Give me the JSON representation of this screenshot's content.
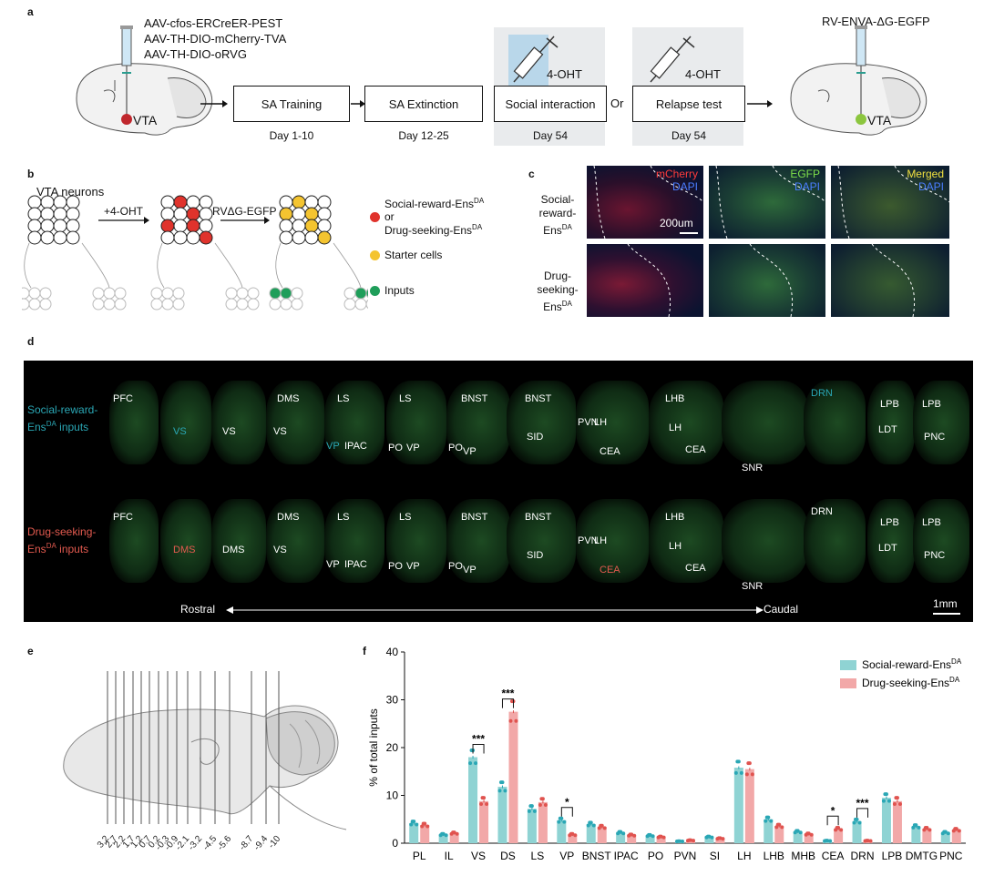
{
  "panel_a": {
    "label": "a",
    "vectors": [
      "AAV-cfos-ERCreER-PEST",
      "AAV-TH-DIO-mCherry-TVA",
      "AAV-TH-DIO-oRVG"
    ],
    "vta_left": "VTA",
    "vta_right": "VTA",
    "rv_vector": "RV-ENVA-ΔG-EGFP",
    "steps": [
      {
        "label": "SA Training",
        "day": "Day 1-10"
      },
      {
        "label": "SA Extinction",
        "day": "Day 12-25"
      },
      {
        "label": "Social interaction",
        "day": "Day 54"
      },
      {
        "label": "Relapse test",
        "day": "Day 54"
      }
    ],
    "oht_1": "4-OHT",
    "oht_2": "4-OHT",
    "or": "Or"
  },
  "panel_b": {
    "label": "b",
    "vta_neurons": "VTA neurons",
    "oht": "+4-OHT",
    "rv": "RVΔG-EGFP",
    "legend_red_1": "Social-reward-Ens",
    "legend_red_sup": "DA",
    "legend_or": "or",
    "legend_red_2": "Drug-seeking-Ens",
    "legend_red_2_sup": "DA",
    "legend_yellow": "Starter cells",
    "legend_green": "Inputs",
    "colors": {
      "red": "#e0332c",
      "yellow": "#f4c430",
      "green": "#1f9e5a"
    }
  },
  "panel_c": {
    "label": "c",
    "row1": "Social-",
    "row1b": "reward-Ens",
    "row1_sup": "DA",
    "row2": "Drug-",
    "row2b": "seeking-Ens",
    "row2_sup": "DA",
    "col1_a": "mCherry",
    "col1_b": "DAPI",
    "col2_a": "EGFP",
    "col2_b": "DAPI",
    "col3_a": "Merged",
    "col3_b": "DAPI",
    "scale": "200um"
  },
  "panel_d": {
    "label": "d",
    "row1_label": "Social-reward-",
    "row1_label_b": "Ens",
    "row1_sup": "DA",
    "row1_label_c": " inputs",
    "row2_label": "Drug-seeking-",
    "row2_label_b": "Ens",
    "row2_sup": "DA",
    "row2_label_c": " inputs",
    "rostral": "Rostral",
    "caudal": "Caudal",
    "scale": "1mm",
    "row1_regions": [
      "PFC",
      "VS",
      "VS",
      "DMS",
      "VS",
      "LS",
      "VP",
      "IPAC",
      "LS",
      "PO",
      "VP",
      "BNST",
      "PO",
      "VP",
      "BNST",
      "SID",
      "PVN",
      "LH",
      "CEA",
      "LHB",
      "LH",
      "CEA",
      "SNR",
      "DRN",
      "LPB",
      "LDT",
      "LPB",
      "PNC"
    ],
    "row2_regions": [
      "PFC",
      "DMS",
      "DMS",
      "DMS",
      "VS",
      "LS",
      "VP",
      "IPAC",
      "LS",
      "PO",
      "VP",
      "BNST",
      "PO",
      "VP",
      "BNST",
      "SID",
      "PVN",
      "LH",
      "CEA",
      "LHB",
      "LH",
      "CEA",
      "SNR",
      "DRN",
      "LPB",
      "LDT",
      "LPB",
      "PNC"
    ]
  },
  "panel_e": {
    "label": "e",
    "coords": [
      "3.2",
      "2.7",
      "2.2",
      "1.7",
      "1.2",
      "0.7",
      "0.2",
      "-0.3",
      "-0.9",
      "-2.1",
      "-3.2",
      "-4.5",
      "-5.6",
      "-8.7",
      "-9.4",
      "-10"
    ]
  },
  "panel_f": {
    "label": "f"
  },
  "chart_data": {
    "type": "bar",
    "ylabel": "% of total inputs",
    "ylim": [
      0,
      40
    ],
    "yticks": [
      0,
      10,
      20,
      30,
      40
    ],
    "categories": [
      "PL",
      "IL",
      "VS",
      "DS",
      "LS",
      "VP",
      "BNST",
      "IPAC",
      "PO",
      "PVN",
      "SI",
      "LH",
      "LHB",
      "MHB",
      "CEA",
      "DRN",
      "LPB",
      "DMTG",
      "PNC"
    ],
    "series": [
      {
        "name": "Social-reward-Ens",
        "sup": "DA",
        "color": "#8fd3d3",
        "values": [
          4.2,
          1.8,
          18.0,
          11.8,
          7.2,
          4.8,
          4.0,
          2.2,
          1.6,
          0.4,
          1.3,
          15.8,
          5.0,
          2.4,
          0.5,
          4.6,
          9.5,
          3.5,
          2.2
        ]
      },
      {
        "name": "Drug-seeking-Ens",
        "sup": "DA",
        "color": "#f2a8a8",
        "values": [
          3.8,
          2.1,
          8.8,
          27.5,
          8.6,
          1.8,
          3.4,
          1.7,
          1.3,
          0.6,
          1.0,
          15.5,
          3.6,
          1.9,
          3.0,
          0.5,
          8.8,
          3.0,
          2.8
        ]
      }
    ],
    "significance": [
      {
        "category": "VS",
        "label": "***"
      },
      {
        "category": "DS",
        "label": "***"
      },
      {
        "category": "VP",
        "label": "*"
      },
      {
        "category": "CEA",
        "label": "*"
      },
      {
        "category": "DRN",
        "label": "***"
      }
    ],
    "legend_position": "top-right"
  }
}
